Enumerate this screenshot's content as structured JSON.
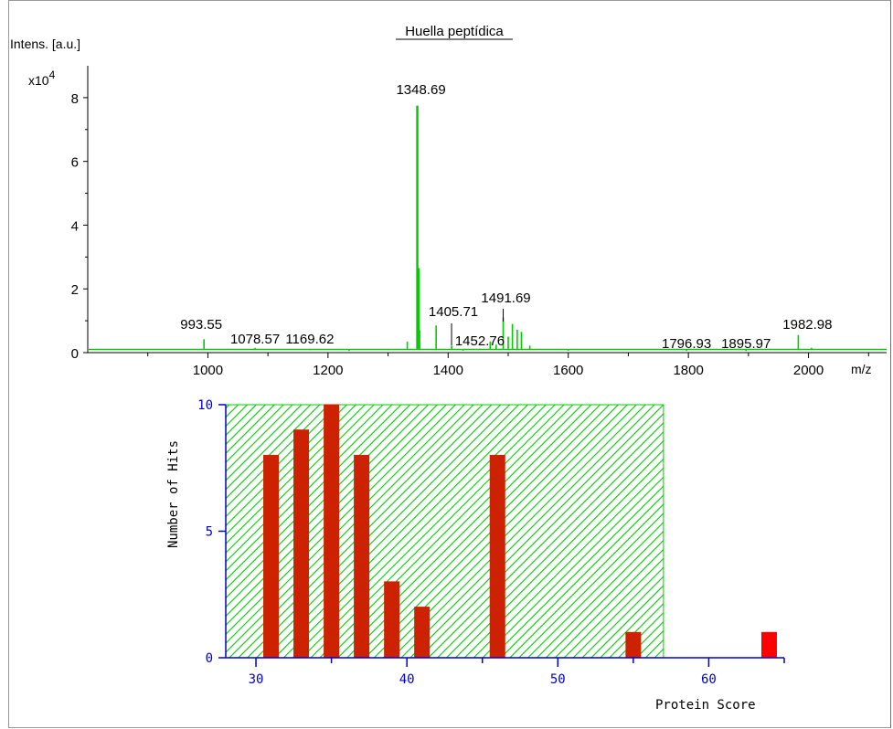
{
  "chart_data": [
    {
      "type": "line",
      "title": "Huella peptídica",
      "ylabel": "Intens. [a.u.]",
      "y_multiplier": "x10",
      "y_multiplier_exp": "4",
      "xlabel": "m/z",
      "xlim": [
        800,
        2130
      ],
      "ylim": [
        0,
        9
      ],
      "x_ticks": [
        1000,
        1200,
        1400,
        1600,
        1800,
        2000
      ],
      "y_ticks": [
        0,
        2,
        4,
        6,
        8
      ],
      "color": "#00cc00",
      "peaks": [
        {
          "mz": 993.55,
          "intensity": 0.42,
          "label": "993.55"
        },
        {
          "mz": 1034,
          "intensity": 0.12,
          "label": ""
        },
        {
          "mz": 1078.57,
          "intensity": 0.15,
          "label": "1078.57"
        },
        {
          "mz": 1169.62,
          "intensity": 0.08,
          "label": "1169.62"
        },
        {
          "mz": 1235,
          "intensity": 0.05,
          "label": ""
        },
        {
          "mz": 1300,
          "intensity": 0.08,
          "label": ""
        },
        {
          "mz": 1316,
          "intensity": 0.1,
          "label": ""
        },
        {
          "mz": 1332,
          "intensity": 0.35,
          "label": ""
        },
        {
          "mz": 1348.69,
          "intensity": 7.75,
          "label": "1348.69"
        },
        {
          "mz": 1350.6,
          "intensity": 2.65,
          "label": ""
        },
        {
          "mz": 1352.5,
          "intensity": 0.7,
          "label": ""
        },
        {
          "mz": 1380,
          "intensity": 0.85,
          "label": ""
        },
        {
          "mz": 1405.71,
          "intensity": 0.22,
          "label": "1405.71"
        },
        {
          "mz": 1425,
          "intensity": 0.06,
          "label": ""
        },
        {
          "mz": 1452.76,
          "intensity": 0.12,
          "label": "1452.76"
        },
        {
          "mz": 1470,
          "intensity": 0.35,
          "label": ""
        },
        {
          "mz": 1480,
          "intensity": 0.25,
          "label": ""
        },
        {
          "mz": 1491.69,
          "intensity": 1.1,
          "label": "1491.69"
        },
        {
          "mz": 1500,
          "intensity": 0.5,
          "label": ""
        },
        {
          "mz": 1507,
          "intensity": 0.9,
          "label": ""
        },
        {
          "mz": 1515,
          "intensity": 0.72,
          "label": ""
        },
        {
          "mz": 1522,
          "intensity": 0.65,
          "label": ""
        },
        {
          "mz": 1536,
          "intensity": 0.22,
          "label": ""
        },
        {
          "mz": 1600,
          "intensity": 0.06,
          "label": ""
        },
        {
          "mz": 1796.93,
          "intensity": 0.05,
          "label": "1796.93"
        },
        {
          "mz": 1895.97,
          "intensity": 0.05,
          "label": "1895.97"
        },
        {
          "mz": 1982.98,
          "intensity": 0.55,
          "label": "1982.98"
        },
        {
          "mz": 2005,
          "intensity": 0.15,
          "label": ""
        }
      ]
    },
    {
      "type": "bar",
      "title": "",
      "ylabel": "Number of Hits",
      "xlabel": "Protein Score",
      "xlim": [
        28,
        65
      ],
      "ylim": [
        0,
        10
      ],
      "x_ticks": [
        30,
        40,
        50,
        60
      ],
      "y_ticks": [
        0,
        5,
        10
      ],
      "threshold_region": {
        "from": 28,
        "to": 57,
        "height": 10,
        "color": "#00cc00"
      },
      "axis_color": "#0000cc",
      "bar_color": "#cc2200",
      "highlight_color": "#ff0000",
      "bars": [
        {
          "score": 31,
          "hits": 8
        },
        {
          "score": 33,
          "hits": 9
        },
        {
          "score": 35,
          "hits": 10
        },
        {
          "score": 37,
          "hits": 8
        },
        {
          "score": 39,
          "hits": 3
        },
        {
          "score": 41,
          "hits": 2
        },
        {
          "score": 46,
          "hits": 8
        },
        {
          "score": 55,
          "hits": 1
        },
        {
          "score": 64,
          "hits": 1,
          "highlight": true
        }
      ]
    }
  ]
}
